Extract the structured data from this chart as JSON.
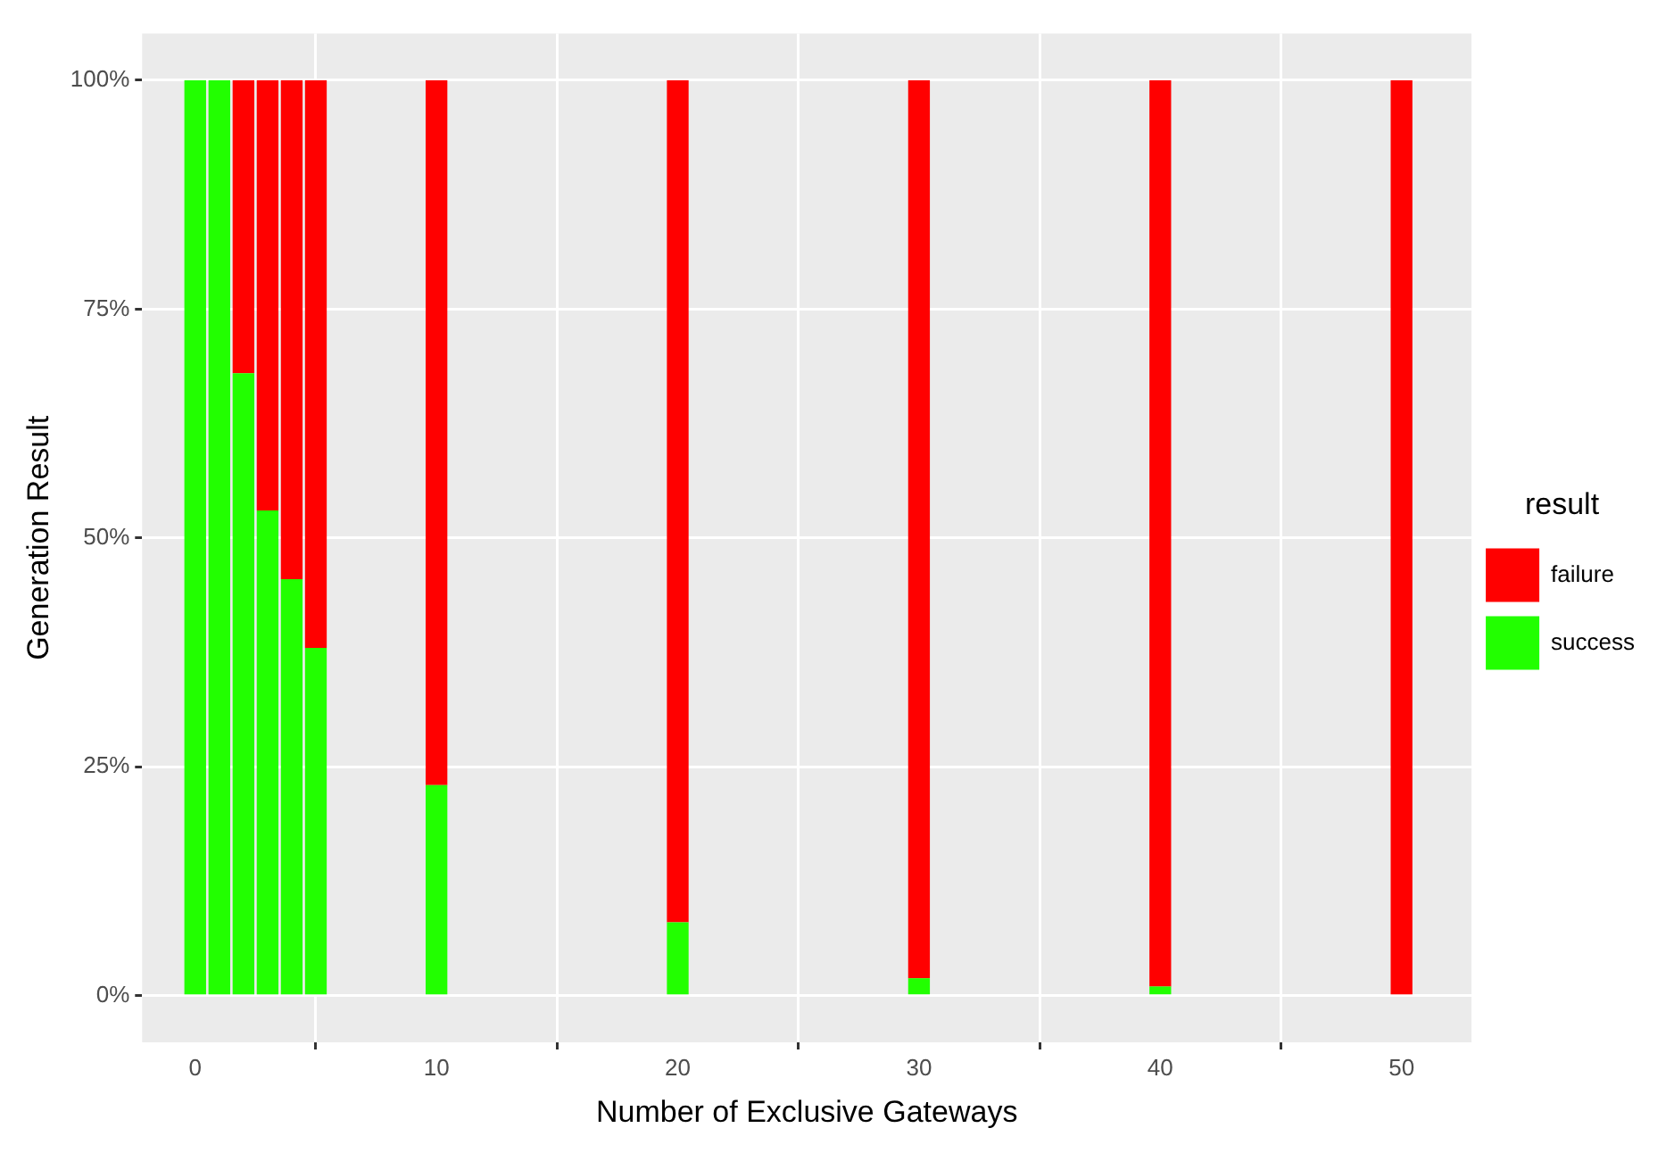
{
  "chart_data": {
    "type": "bar",
    "stacked": true,
    "xlabel": "Number of Exclusive Gateways",
    "ylabel": "Generation Result",
    "legend_title": "result",
    "legend": "right",
    "grid": true,
    "x": [
      0,
      1,
      2,
      3,
      4,
      5,
      10,
      20,
      30,
      40,
      50
    ],
    "series": [
      {
        "name": "success",
        "color": "#22ff00",
        "values": [
          100,
          100,
          68,
          53,
          45.5,
          38,
          23,
          8,
          1.9,
          1,
          0
        ]
      },
      {
        "name": "failure",
        "color": "#ff0000",
        "values": [
          0,
          0,
          32,
          47,
          54.5,
          62,
          77,
          92,
          98.1,
          99,
          100
        ]
      }
    ],
    "xlim": [
      -2.2,
      52.9
    ],
    "xticks": [
      0,
      10,
      20,
      30,
      40,
      50
    ],
    "ylim": [
      -5.1,
      105.1
    ],
    "yticks": [
      {
        "value": 0,
        "label": "0%"
      },
      {
        "value": 25,
        "label": "25%"
      },
      {
        "value": 50,
        "label": "50%"
      },
      {
        "value": 75,
        "label": "75%"
      },
      {
        "value": 100,
        "label": "100%"
      }
    ]
  }
}
